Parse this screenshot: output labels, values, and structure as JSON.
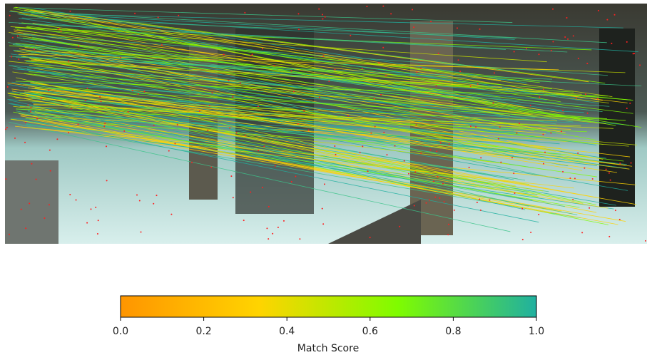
{
  "chart_data": {
    "type": "colorbar",
    "xlabel": "Match Score",
    "xlim": [
      0,
      1
    ],
    "xticks": [
      {
        "value": 0,
        "label": "0.0"
      },
      {
        "value": 0.2,
        "label": "0.2"
      },
      {
        "value": 0.4,
        "label": "0.4"
      },
      {
        "value": 0.6,
        "label": "0.6"
      },
      {
        "value": 0.8,
        "label": "0.8"
      },
      {
        "value": 1,
        "label": "1.0"
      }
    ],
    "colors": [
      "#ff9500",
      "#ffd400",
      "#7ffc00",
      "#20b0a0"
    ]
  }
}
